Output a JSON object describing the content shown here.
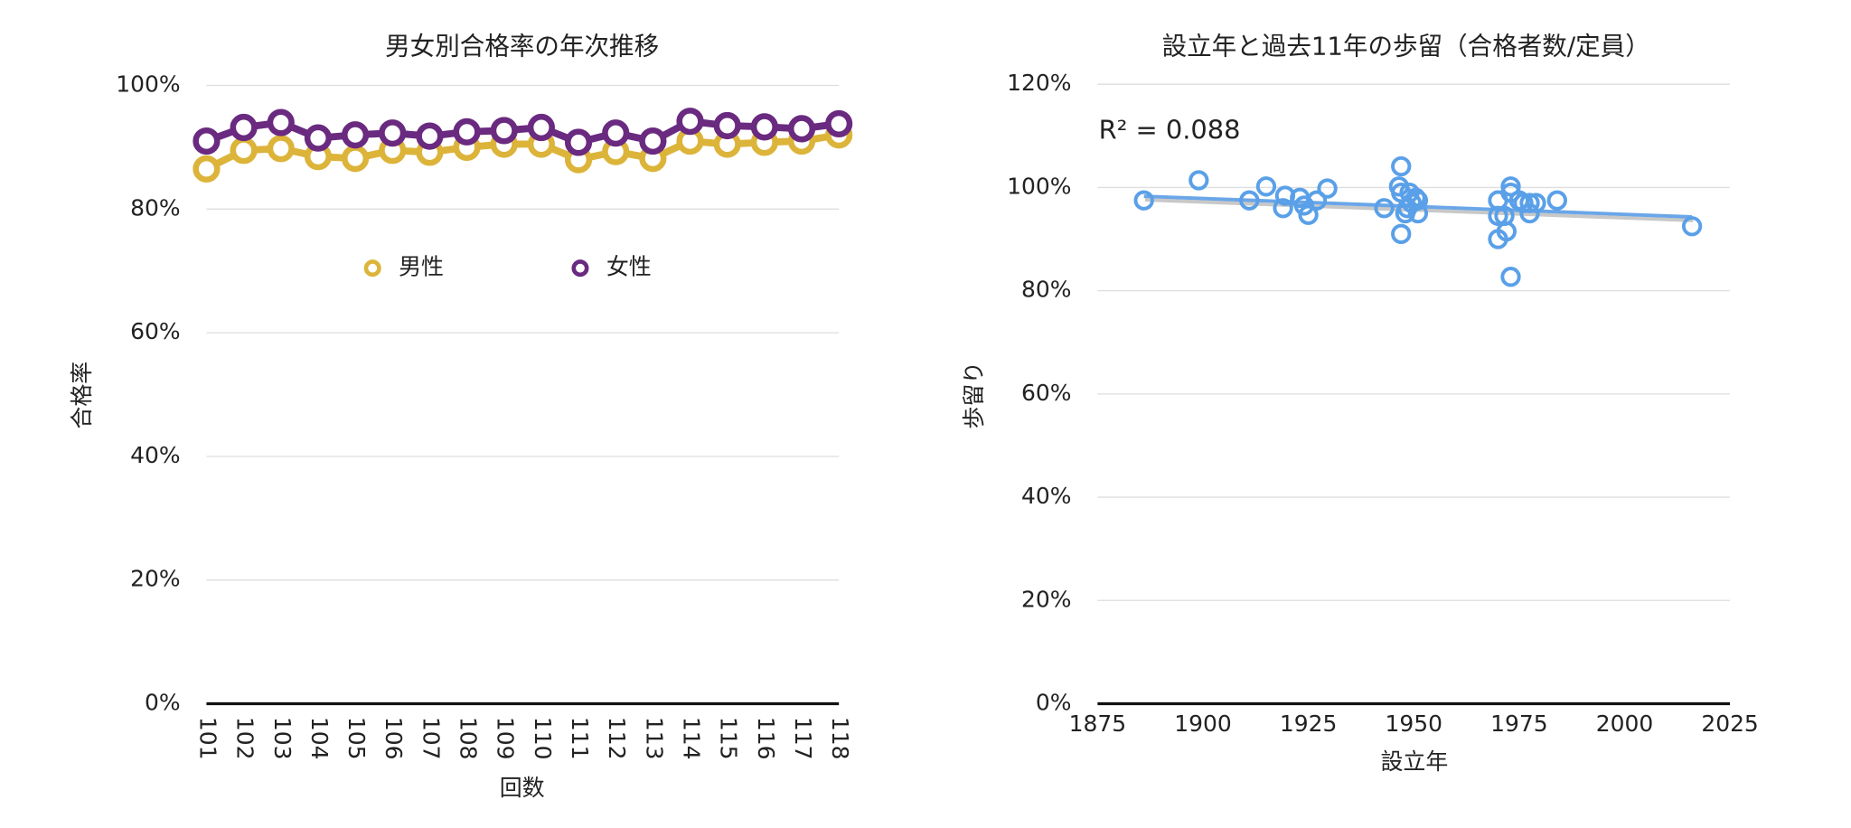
{
  "chart_data": [
    {
      "type": "line",
      "title": "男女別合格率の年次推移",
      "x_label": "回数",
      "y_label": "合格率",
      "categories": [
        "101",
        "102",
        "103",
        "104",
        "105",
        "106",
        "107",
        "108",
        "109",
        "110",
        "111",
        "112",
        "113",
        "114",
        "115",
        "116",
        "117",
        "118"
      ],
      "series": [
        {
          "name": "男性",
          "color": "#dcb43a",
          "values": [
            86.5,
            89.5,
            89.8,
            88.5,
            88.2,
            89.5,
            89.2,
            90,
            90.5,
            90.5,
            88,
            89.3,
            88.2,
            91,
            90.5,
            90.8,
            91,
            92
          ]
        },
        {
          "name": "女性",
          "color": "#6a2a80",
          "values": [
            91,
            93.2,
            94,
            91.5,
            92,
            92.3,
            91.8,
            92.5,
            92.7,
            93.2,
            90.8,
            92.3,
            91,
            94.2,
            93.5,
            93.3,
            93,
            93.8
          ]
        }
      ],
      "ylim": [
        0,
        100
      ],
      "yticks": [
        {
          "value": 0,
          "label": "0%"
        },
        {
          "value": 20,
          "label": "20%"
        },
        {
          "value": 40,
          "label": "40%"
        },
        {
          "value": 60,
          "label": "60%"
        },
        {
          "value": 80,
          "label": "80%"
        },
        {
          "value": 100,
          "label": "100%"
        }
      ],
      "grid": true,
      "legend": "top"
    },
    {
      "type": "scatter",
      "title": "設立年と過去11年の歩留（合格者数/定員）",
      "x_label": "設立年",
      "y_label": "歩留り",
      "annotation": "R² = 0.088",
      "series": [
        {
          "color": "#5aa0e8",
          "x": [
            1886,
            1899,
            1911,
            1915,
            1919.5,
            1919,
            1923,
            1924,
            1925,
            1927,
            1929.5,
            1943,
            1947,
            1946.5,
            1947,
            1949,
            1947,
            1948.5,
            1949.5,
            1950.5,
            1951,
            1951,
            1948,
            1970,
            1970,
            1970,
            1972,
            1973,
            1973,
            1971.5,
            1975,
            1976,
            1977.5,
            1977.5,
            1979,
            1973,
            1984,
            2016
          ],
          "values": [
            97.5,
            101.4,
            97.5,
            100.2,
            98.4,
            96,
            98,
            96.5,
            94.7,
            97.5,
            99.8,
            96,
            104.1,
            100.2,
            99,
            99,
            91,
            96,
            97,
            98,
            97.5,
            95,
            95,
            97.5,
            94.5,
            90,
            91.5,
            100.2,
            99,
            94.5,
            97.5,
            97,
            97,
            95,
            97,
            82.7,
            97.5,
            92.5
          ]
        }
      ],
      "trendline": {
        "color": "#6aa6e8",
        "x": [
          1886,
          2016
        ],
        "values": [
          98.3,
          94.3
        ]
      },
      "xlim": [
        1875,
        2025
      ],
      "xticks": [
        1875,
        1900,
        1925,
        1950,
        1975,
        2000,
        2025
      ],
      "ylim": [
        0,
        120
      ],
      "yticks": [
        {
          "value": 0,
          "label": "0%"
        },
        {
          "value": 20,
          "label": "20%"
        },
        {
          "value": 40,
          "label": "40%"
        },
        {
          "value": 60,
          "label": "60%"
        },
        {
          "value": 80,
          "label": "80%"
        },
        {
          "value": 100,
          "label": "100%"
        },
        {
          "value": 120,
          "label": "120%"
        }
      ],
      "grid": true
    }
  ]
}
